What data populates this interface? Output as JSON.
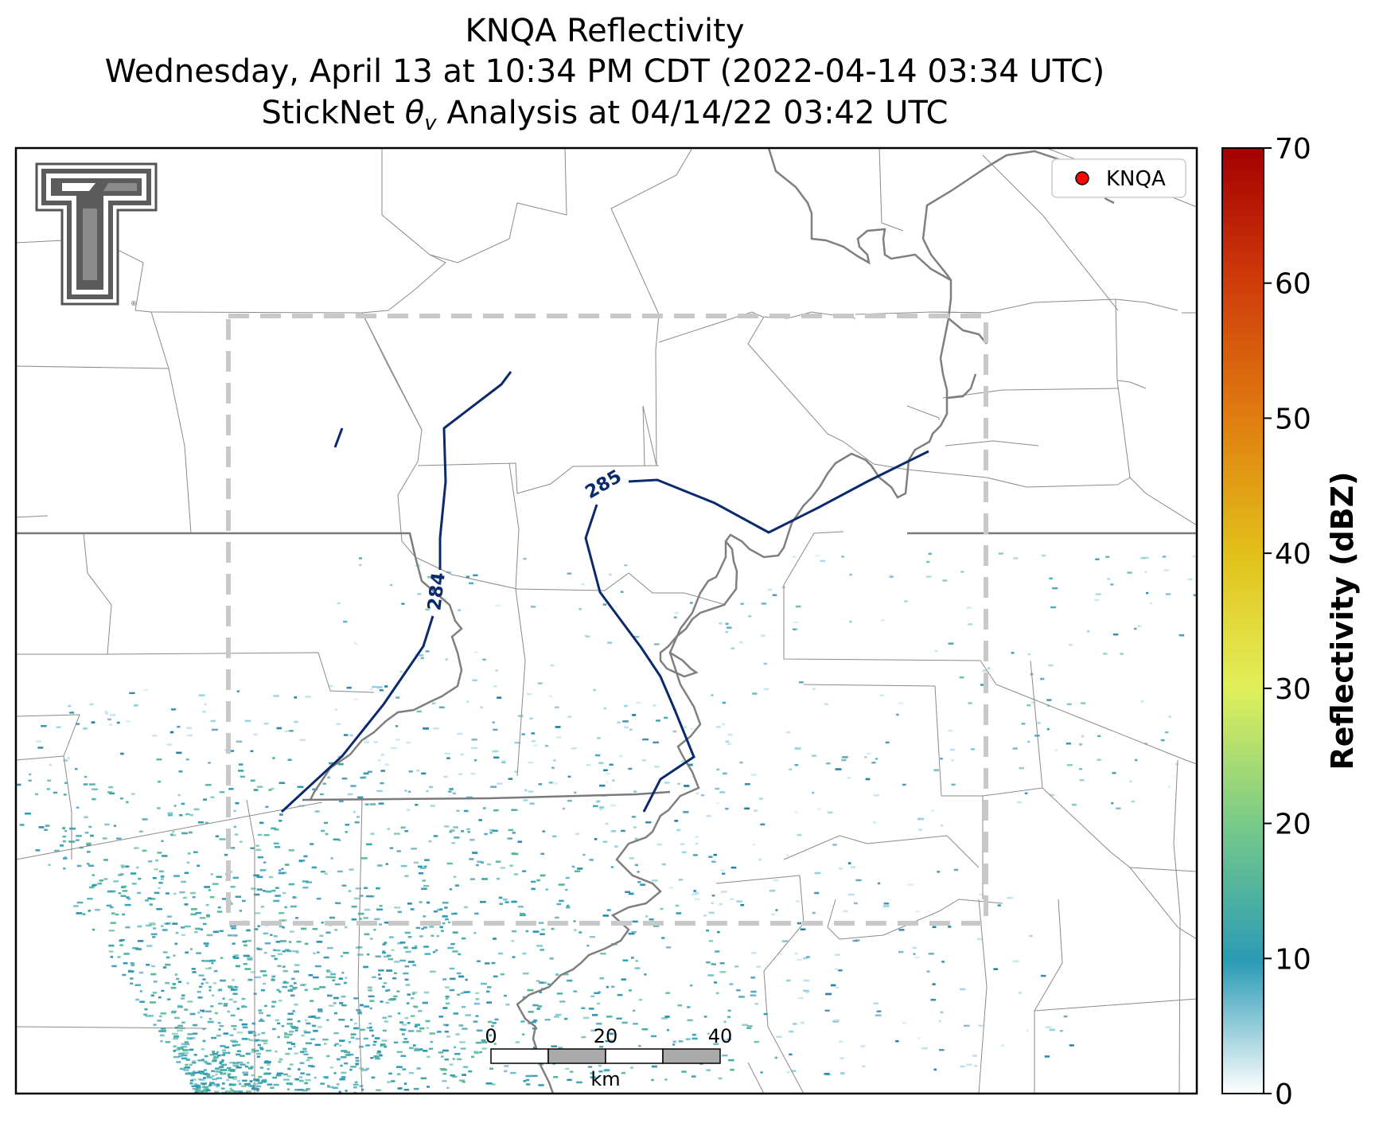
{
  "title": {
    "line1": "KNQA Reflectivity",
    "line2": "Wednesday, April 13 at 10:34 PM CDT (2022-04-14 03:34 UTC)",
    "line3_pre": "StickNet ",
    "line3_theta": "θ",
    "line3_sub": "v",
    "line3_post": " Analysis at 04/14/22 03:42 UTC"
  },
  "legend": {
    "label": "KNQA",
    "marker_color": "#ff0000"
  },
  "contours": [
    {
      "label": "284",
      "color": "#0b2a6e"
    },
    {
      "label": "285",
      "color": "#0b2a6e"
    }
  ],
  "colorbar": {
    "label": "Reflectivity (dBZ)",
    "ticks": [
      "0",
      "10",
      "20",
      "30",
      "40",
      "50",
      "60",
      "70"
    ],
    "min": 0,
    "max": 70,
    "colors": [
      "#ffffff",
      "#2a9bb5",
      "#74c98a",
      "#e2ef5a",
      "#e2c11a",
      "#e07f10",
      "#cf3b0a",
      "#a30000"
    ]
  },
  "scalebar": {
    "ticks": [
      "0",
      "20",
      "40"
    ],
    "unit": "km"
  },
  "logo": {
    "name": "Texas Tech double-T"
  },
  "colors": {
    "contour": "#0b2a6e",
    "analysis_box": "#c8c8c8",
    "county_lines": "#888888",
    "river": "#808080",
    "state_line": "#808080",
    "radar_echo": "#2a9bb5"
  }
}
